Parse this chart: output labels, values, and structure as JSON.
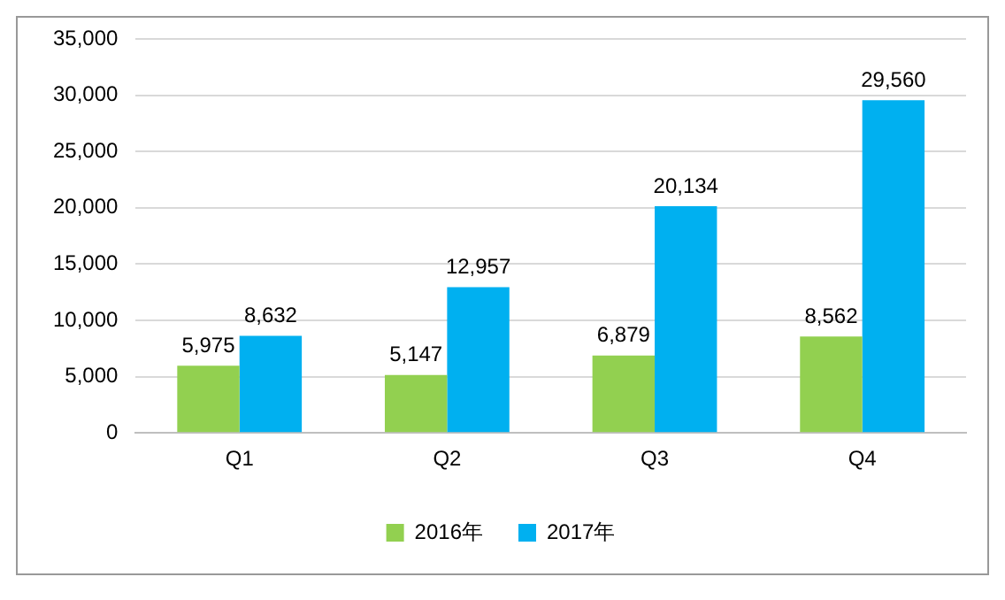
{
  "chart_data": {
    "type": "bar",
    "categories": [
      "Q1",
      "Q2",
      "Q3",
      "Q4"
    ],
    "series": [
      {
        "name": "2016年",
        "color": "#92d050",
        "values": [
          5975,
          5147,
          6879,
          8562
        ],
        "value_labels": [
          "5,975",
          "5,147",
          "6,879",
          "8,562"
        ]
      },
      {
        "name": "2017年",
        "color": "#00b0f0",
        "values": [
          8632,
          12957,
          20134,
          29560
        ],
        "value_labels": [
          "8,632",
          "12,957",
          "20,134",
          "29,560"
        ]
      }
    ],
    "ylim": [
      0,
      35000
    ],
    "yticks": [
      {
        "value": 0,
        "label": "0"
      },
      {
        "value": 5000,
        "label": "5,000"
      },
      {
        "value": 10000,
        "label": "10,000"
      },
      {
        "value": 15000,
        "label": "15,000"
      },
      {
        "value": 20000,
        "label": "20,000"
      },
      {
        "value": 25000,
        "label": "25,000"
      },
      {
        "value": 30000,
        "label": "30,000"
      },
      {
        "value": 35000,
        "label": "35,000"
      }
    ],
    "grid": "y",
    "legend": "bottom"
  }
}
